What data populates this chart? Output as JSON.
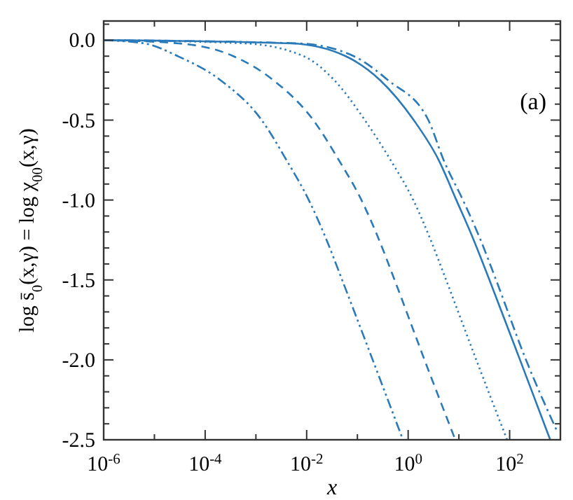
{
  "chart_data": {
    "type": "line",
    "xlabel": "x",
    "ylabel": "log s̄$_{0}$(x,γ) = log χ$_{00}$(x,γ)",
    "annotations": [
      "(a)"
    ],
    "log": "x",
    "grid": false,
    "xlim": [
      1e-06,
      1000
    ],
    "ylim": [
      -2.5,
      0.12
    ],
    "xticks": [
      {
        "value": 1e-06,
        "label": "10$^{-6}$"
      },
      {
        "value": 1e-05,
        "label": null
      },
      {
        "value": 0.0001,
        "label": "10$^{-4}$"
      },
      {
        "value": 0.001,
        "label": null
      },
      {
        "value": 0.01,
        "label": "10$^{-2}$"
      },
      {
        "value": 0.1,
        "label": null
      },
      {
        "value": 1,
        "label": "10$^{0}$"
      },
      {
        "value": 10,
        "label": null
      },
      {
        "value": 100,
        "label": "10$^{2}$"
      },
      {
        "value": 1000,
        "label": null
      }
    ],
    "yticks": [
      {
        "value": -2.5,
        "label": "-2.5"
      },
      {
        "value": -2.4,
        "label": null
      },
      {
        "value": -2.3,
        "label": null
      },
      {
        "value": -2.2,
        "label": null
      },
      {
        "value": -2.1,
        "label": null
      },
      {
        "value": -2,
        "label": "-2.0"
      },
      {
        "value": -1.9,
        "label": null
      },
      {
        "value": -1.8,
        "label": null
      },
      {
        "value": -1.7,
        "label": null
      },
      {
        "value": -1.6,
        "label": null
      },
      {
        "value": -1.5,
        "label": "-1.5"
      },
      {
        "value": -1.4,
        "label": null
      },
      {
        "value": -1.3,
        "label": null
      },
      {
        "value": -1.2,
        "label": null
      },
      {
        "value": -1.1,
        "label": null
      },
      {
        "value": -1,
        "label": "-1.0"
      },
      {
        "value": -0.9,
        "label": null
      },
      {
        "value": -0.8,
        "label": null
      },
      {
        "value": -0.7,
        "label": null
      },
      {
        "value": -0.6,
        "label": null
      },
      {
        "value": -0.5,
        "label": "-0.5"
      },
      {
        "value": -0.4,
        "label": null
      },
      {
        "value": -0.3,
        "label": null
      },
      {
        "value": -0.2,
        "label": null
      },
      {
        "value": -0.1,
        "label": null
      },
      {
        "value": 0,
        "label": "0.0"
      },
      {
        "value": 0.1,
        "label": null
      }
    ],
    "series": [
      {
        "color": "#2a7ab9",
        "line_style": "dashdotdot",
        "x": [
          1e-06,
          6.3e-06,
          2.9e-05,
          0.0002,
          0.0013,
          0.004,
          0.011,
          0.024,
          0.05,
          0.2,
          0.79
        ],
        "values": [
          0,
          -0.02,
          -0.1,
          -0.25,
          -0.5,
          -0.75,
          -1.0,
          -1.24,
          -1.5,
          -2.0,
          -2.5
        ]
      },
      {
        "color": "#2a7ab9",
        "line_style": "dashed",
        "x": [
          1e-06,
          3e-05,
          0.00036,
          0.0022,
          0.0135,
          0.043,
          0.12,
          0.26,
          0.54,
          2.1,
          8.5
        ],
        "values": [
          0,
          -0.02,
          -0.1,
          -0.25,
          -0.5,
          -0.75,
          -1.0,
          -1.24,
          -1.5,
          -2.0,
          -2.5
        ]
      },
      {
        "color": "#2a7ab9",
        "line_style": "dotted",
        "x": [
          1e-06,
          0.0006,
          0.0087,
          0.035,
          0.14,
          0.45,
          1.26,
          2.7,
          5.6,
          22,
          89
        ],
        "values": [
          0,
          -0.02,
          -0.1,
          -0.25,
          -0.5,
          -0.75,
          -1.0,
          -1.24,
          -1.5,
          -2.0,
          -2.5
        ]
      },
      {
        "color": "#2a7ab9",
        "line_style": "solid",
        "x": [
          1e-06,
          0.005,
          0.059,
          0.28,
          1.29,
          4.0,
          8.9,
          19,
          40,
          160,
          630
        ],
        "values": [
          0,
          -0.02,
          -0.1,
          -0.25,
          -0.5,
          -0.75,
          -1.0,
          -1.24,
          -1.5,
          -2.0,
          -2.5
        ]
      },
      {
        "color": "#2a7ab9",
        "line_style": "dashdot",
        "x": [
          1e-06,
          0.007,
          0.085,
          0.4,
          2.5,
          5.0,
          12,
          26,
          54,
          210,
          870
        ],
        "values": [
          0,
          -0.02,
          -0.1,
          -0.25,
          -0.5,
          -0.75,
          -1.0,
          -1.24,
          -1.5,
          -2.0,
          -2.45
        ]
      }
    ]
  }
}
